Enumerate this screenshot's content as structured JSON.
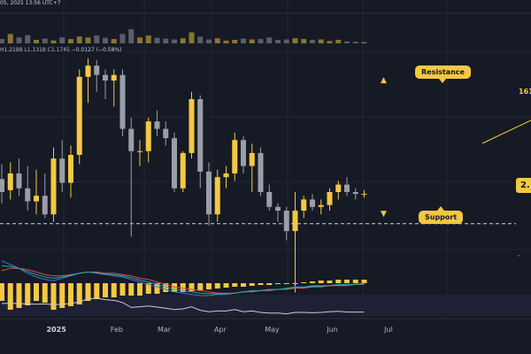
{
  "header": {
    "timestamp": "05, 2025 13:56 UTC+7",
    "ohlc_text": "H1.2188  L1.1318  C1.1745",
    "change": "−0.0127 (−0.58%)"
  },
  "annotations": {
    "resistance": "Resistance",
    "support": "Support",
    "up_arrow": "▲",
    "down_arrow": "▼"
  },
  "price_tags": {
    "upper": "161",
    "current": "2.",
    "lower": "·"
  },
  "colors": {
    "background": "#161a25",
    "bull": "#f5c842",
    "bear": "#9a9ea8",
    "grid": "#232734",
    "ma_red": "#d94a4a",
    "ma_blue": "#3a7bd5",
    "ma_teal": "#2aa6a0",
    "rsi": "#c8ccd4",
    "accent": "#f5c842"
  },
  "chart_data": {
    "type": "candlestick",
    "x_tick_labels": [
      {
        "label": "2025",
        "i": 5.5
      },
      {
        "label": "Feb",
        "i": 12.5
      },
      {
        "label": "Mar",
        "i": 18
      },
      {
        "label": "Apr",
        "i": 24.5
      },
      {
        "label": "May",
        "i": 30.5
      },
      {
        "label": "Jun",
        "i": 37.5
      },
      {
        "label": "Jul",
        "i": 44
      }
    ],
    "price_range": [
      0,
      100
    ],
    "candles": [
      {
        "o": 37,
        "h": 45,
        "l": 24,
        "c": 30
      },
      {
        "o": 31,
        "h": 46,
        "l": 26,
        "c": 40
      },
      {
        "o": 40,
        "h": 48,
        "l": 28,
        "c": 32
      },
      {
        "o": 32,
        "h": 44,
        "l": 20,
        "c": 25
      },
      {
        "o": 25,
        "h": 42,
        "l": 18,
        "c": 28
      },
      {
        "o": 28,
        "h": 40,
        "l": 16,
        "c": 18
      },
      {
        "o": 18,
        "h": 54,
        "l": 14,
        "c": 48
      },
      {
        "o": 48,
        "h": 58,
        "l": 30,
        "c": 35
      },
      {
        "o": 35,
        "h": 55,
        "l": 27,
        "c": 50
      },
      {
        "o": 50,
        "h": 96,
        "l": 45,
        "c": 92
      },
      {
        "o": 92,
        "h": 102,
        "l": 78,
        "c": 98
      },
      {
        "o": 98,
        "h": 101,
        "l": 84,
        "c": 93
      },
      {
        "o": 93,
        "h": 96,
        "l": 80,
        "c": 90
      },
      {
        "o": 90,
        "h": 96,
        "l": 76,
        "c": 93
      },
      {
        "o": 93,
        "h": 96,
        "l": 60,
        "c": 64
      },
      {
        "o": 64,
        "h": 70,
        "l": 6,
        "c": 52
      },
      {
        "o": 52,
        "h": 58,
        "l": 44,
        "c": 52
      },
      {
        "o": 52,
        "h": 70,
        "l": 46,
        "c": 68
      },
      {
        "o": 68,
        "h": 74,
        "l": 60,
        "c": 64
      },
      {
        "o": 64,
        "h": 68,
        "l": 55,
        "c": 59
      },
      {
        "o": 59,
        "h": 62,
        "l": 30,
        "c": 32
      },
      {
        "o": 32,
        "h": 52,
        "l": 30,
        "c": 51
      },
      {
        "o": 51,
        "h": 84,
        "l": 48,
        "c": 80
      },
      {
        "o": 80,
        "h": 82,
        "l": 32,
        "c": 41
      },
      {
        "o": 41,
        "h": 46,
        "l": 12,
        "c": 18
      },
      {
        "o": 18,
        "h": 42,
        "l": 14,
        "c": 38
      },
      {
        "o": 38,
        "h": 44,
        "l": 32,
        "c": 40
      },
      {
        "o": 40,
        "h": 62,
        "l": 36,
        "c": 58
      },
      {
        "o": 58,
        "h": 60,
        "l": 40,
        "c": 44
      },
      {
        "o": 44,
        "h": 56,
        "l": 30,
        "c": 51
      },
      {
        "o": 51,
        "h": 54,
        "l": 28,
        "c": 30
      },
      {
        "o": 30,
        "h": 34,
        "l": 20,
        "c": 22
      },
      {
        "o": 22,
        "h": 24,
        "l": 14,
        "c": 20
      },
      {
        "o": 20,
        "h": 22,
        "l": 4,
        "c": 9
      },
      {
        "o": 9,
        "h": 30,
        "l": -24,
        "c": 20
      },
      {
        "o": 20,
        "h": 28,
        "l": 16,
        "c": 26
      },
      {
        "o": 26,
        "h": 29,
        "l": 20,
        "c": 22
      },
      {
        "o": 22,
        "h": 26,
        "l": 18,
        "c": 23
      },
      {
        "o": 23,
        "h": 32,
        "l": 20,
        "c": 30
      },
      {
        "o": 30,
        "h": 36,
        "l": 26,
        "c": 34
      },
      {
        "o": 34,
        "h": 38,
        "l": 28,
        "c": 30
      },
      {
        "o": 30,
        "h": 32,
        "l": 26,
        "c": 29
      },
      {
        "o": 29,
        "h": 31,
        "l": 27,
        "c": 29
      }
    ],
    "resistance_level": 84,
    "support_level": 13,
    "volume": [
      22,
      48,
      30,
      42,
      18,
      24,
      15,
      30,
      22,
      35,
      30,
      40,
      28,
      22,
      48,
      72,
      30,
      40,
      28,
      24,
      20,
      26,
      56,
      34,
      20,
      26,
      14,
      18,
      24,
      20,
      22,
      30,
      18,
      20,
      26,
      22,
      18,
      20,
      12,
      18,
      10,
      8,
      6
    ],
    "macd_histogram": [
      -20,
      -30,
      -28,
      -25,
      -20,
      -22,
      -30,
      -28,
      -26,
      -24,
      -20,
      -18,
      -16,
      -16,
      -14,
      -14,
      -14,
      -12,
      -12,
      -10,
      -10,
      -10,
      -9,
      -8,
      -7,
      -6,
      -5,
      -4,
      -4,
      -3,
      -2,
      -2,
      -1,
      -1,
      0,
      1,
      2,
      3,
      3,
      4,
      4,
      4,
      4
    ],
    "macd_line": [
      18,
      15,
      12,
      8,
      5,
      3,
      2,
      4,
      6,
      8,
      9,
      8,
      7,
      6,
      5,
      3,
      1,
      -1,
      -3,
      -5,
      -7,
      -8,
      -9,
      -10,
      -10,
      -9,
      -9,
      -8,
      -7,
      -6,
      -6,
      -5,
      -5,
      -4,
      -3,
      -3,
      -2,
      -2,
      -2,
      -1,
      -1,
      -1,
      0
    ],
    "signal_line": [
      10,
      12,
      12,
      11,
      9,
      7,
      6,
      6,
      7,
      8,
      9,
      9,
      8,
      8,
      7,
      6,
      4,
      3,
      1,
      -1,
      -3,
      -4,
      -5,
      -6,
      -7,
      -8,
      -8,
      -8,
      -7,
      -7,
      -6,
      -6,
      -5,
      -5,
      -4,
      -4,
      -3,
      -3,
      -2,
      -2,
      -2,
      -1,
      -1
    ],
    "rsi": [
      55,
      56,
      55,
      54,
      53,
      54,
      52,
      53,
      55,
      60,
      68,
      70,
      66,
      64,
      58,
      44,
      46,
      48,
      45,
      42,
      38,
      40,
      46,
      36,
      32,
      34,
      34,
      38,
      32,
      34,
      30,
      28,
      28,
      26,
      30,
      30,
      29,
      30,
      32,
      33,
      31,
      31,
      31
    ]
  }
}
